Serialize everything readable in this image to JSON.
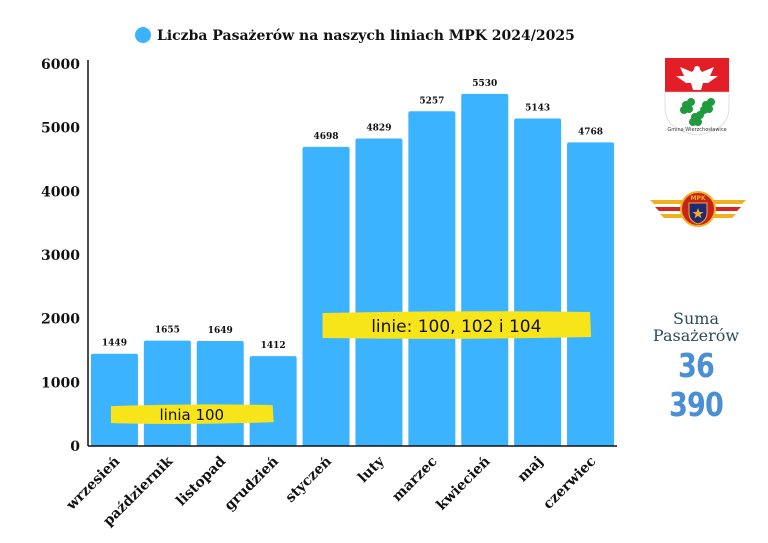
{
  "chart_data": {
    "type": "bar",
    "title": "Liczba Pasażerów na naszych liniach MPK 2024/2025",
    "legend": "top",
    "categories": [
      "wrzesień",
      "październik",
      "listopad",
      "grudzień",
      "styczeń",
      "luty",
      "marzec",
      "kwiecień",
      "maj",
      "czerwiec"
    ],
    "series": [
      {
        "name": "Liczba Pasażerów na naszych liniach MPK 2024/2025",
        "values": [
          1449,
          1655,
          1649,
          1412,
          4698,
          4829,
          5257,
          5530,
          5143,
          4768
        ]
      }
    ],
    "value_labels": [
      "1449",
      "1655",
      "1649",
      "1412",
      "4698",
      "4829",
      "5257",
      "5530",
      "5143",
      "4768"
    ],
    "yticks": [
      "0",
      "1000",
      "2000",
      "3000",
      "4000",
      "5000",
      "6000"
    ],
    "ylim": [
      0,
      6000
    ],
    "grid": false,
    "annotations": [
      {
        "text": "linia 100",
        "from_category": 0,
        "to_category": 3,
        "value": 500
      },
      {
        "text": "linie: 100, 102 i 104",
        "from_category": 4,
        "to_category": 9,
        "value": 1900
      }
    ],
    "colors": {
      "bar": "#3bb3ff",
      "highlight": "#f7e51a",
      "axis": "#111111"
    }
  },
  "sidebar": {
    "crest_caption": "Gmina Wierzchosławice",
    "mpk_logo_text": "MPK",
    "sum_label": "Suma Pasażerów",
    "sum_value": "36 390"
  }
}
